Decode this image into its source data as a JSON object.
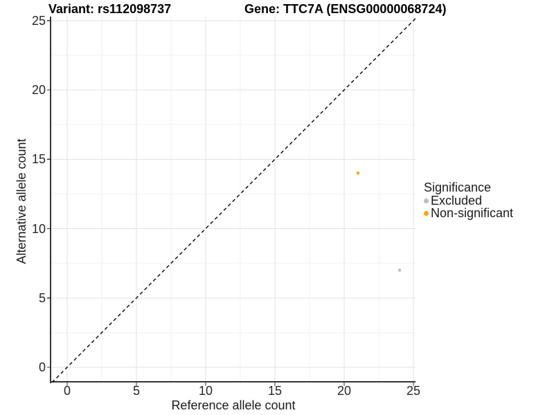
{
  "titles": {
    "variant": "Variant: rs112098737",
    "gene": "Gene: TTC7A (ENSG00000068724)"
  },
  "chart_data": {
    "type": "scatter",
    "xlabel": "Reference allele count",
    "ylabel": "Alternative allele count",
    "xlim": [
      0,
      25
    ],
    "ylim": [
      0,
      25
    ],
    "xticks": [
      0,
      5,
      10,
      15,
      20,
      25
    ],
    "yticks": [
      0,
      5,
      10,
      15,
      20,
      25
    ],
    "minor_interval": 2.5,
    "grid": "major+minor",
    "identity_line": {
      "style": "dashed",
      "slope": 1,
      "intercept": 0,
      "color": "#000000"
    },
    "legend": {
      "title": "Significance",
      "position": "right",
      "entries": [
        {
          "label": "Excluded",
          "color": "#BEBEBE"
        },
        {
          "label": "Non-significant",
          "color": "#FFA500"
        }
      ]
    },
    "series": [
      {
        "name": "Excluded",
        "color": "#BEBEBE",
        "points": [
          {
            "x": 24,
            "y": 7
          }
        ]
      },
      {
        "name": "Non-significant",
        "color": "#FFA500",
        "points": [
          {
            "x": 21,
            "y": 14
          }
        ]
      }
    ]
  },
  "colors": {
    "background": "#FFFFFF",
    "grid_major": "#E2E2E2",
    "grid_minor": "#F2F2F2",
    "axis_line": "#333333",
    "tick": "#333333",
    "text": "#1A1A1A"
  }
}
